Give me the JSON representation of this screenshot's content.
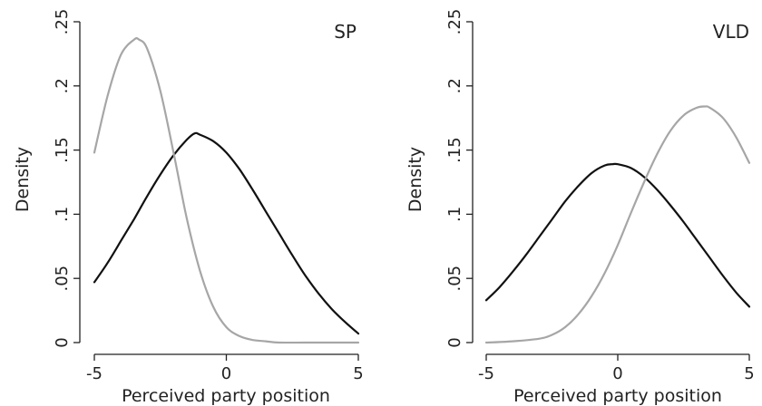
{
  "chart_data": [
    {
      "type": "line",
      "title": "SP",
      "xlabel": "Perceived party position",
      "ylabel": "Density",
      "xlim": [
        -5,
        5
      ],
      "ylim": [
        0,
        0.25
      ],
      "x_ticks": [
        -5,
        0,
        5
      ],
      "x_tick_labels": [
        "-5",
        "0",
        "5"
      ],
      "y_ticks": [
        0,
        0.05,
        0.1,
        0.15,
        0.2,
        0.25
      ],
      "y_tick_labels": [
        "0",
        ".05",
        ".1",
        ".15",
        ".2",
        ".25"
      ],
      "grid": false,
      "legend": "none",
      "series": [
        {
          "color": "#111111",
          "x": [
            -5,
            -4.5,
            -4,
            -3.5,
            -3,
            -2.5,
            -2,
            -1.5,
            -1.2,
            -1,
            -0.5,
            0,
            0.5,
            1,
            1.5,
            2,
            2.5,
            3,
            3.5,
            4,
            4.5,
            5
          ],
          "y": [
            0.047,
            0.062,
            0.079,
            0.096,
            0.114,
            0.131,
            0.146,
            0.158,
            0.163,
            0.162,
            0.157,
            0.148,
            0.135,
            0.119,
            0.102,
            0.085,
            0.068,
            0.052,
            0.038,
            0.026,
            0.016,
            0.007
          ]
        },
        {
          "color": "#a6a6a6",
          "x": [
            -5,
            -4.5,
            -4,
            -3.5,
            -3.3,
            -3,
            -2.5,
            -2,
            -1.5,
            -1,
            -0.5,
            0,
            0.5,
            1,
            1.5,
            2,
            3,
            4,
            5
          ],
          "y": [
            0.148,
            0.192,
            0.224,
            0.236,
            0.236,
            0.229,
            0.196,
            0.148,
            0.097,
            0.056,
            0.028,
            0.012,
            0.005,
            0.002,
            0.001,
            0.0,
            0.0,
            0.0,
            0.0
          ]
        }
      ]
    },
    {
      "type": "line",
      "title": "VLD",
      "xlabel": "Perceived party position",
      "ylabel": "Density",
      "xlim": [
        -5,
        5
      ],
      "ylim": [
        0,
        0.25
      ],
      "x_ticks": [
        -5,
        0,
        5
      ],
      "x_tick_labels": [
        "-5",
        "0",
        "5"
      ],
      "y_ticks": [
        0,
        0.05,
        0.1,
        0.15,
        0.2,
        0.25
      ],
      "y_tick_labels": [
        "0",
        ".05",
        ".1",
        ".15",
        ".2",
        ".25"
      ],
      "grid": false,
      "legend": "none",
      "series": [
        {
          "color": "#111111",
          "x": [
            -5,
            -4.5,
            -4,
            -3.5,
            -3,
            -2.5,
            -2,
            -1.5,
            -1,
            -0.5,
            -0.2,
            0,
            0.5,
            1,
            1.5,
            2,
            2.5,
            3,
            3.5,
            4,
            4.5,
            5
          ],
          "y": [
            0.033,
            0.043,
            0.055,
            0.068,
            0.082,
            0.096,
            0.11,
            0.122,
            0.132,
            0.138,
            0.139,
            0.139,
            0.136,
            0.129,
            0.119,
            0.107,
            0.094,
            0.08,
            0.066,
            0.052,
            0.039,
            0.028
          ]
        },
        {
          "color": "#a6a6a6",
          "x": [
            -5,
            -4,
            -3,
            -2.5,
            -2,
            -1.5,
            -1,
            -0.5,
            0,
            0.5,
            1,
            1.5,
            2,
            2.5,
            3,
            3.3,
            3.5,
            4,
            4.5,
            5
          ],
          "y": [
            0.0,
            0.001,
            0.003,
            0.006,
            0.012,
            0.022,
            0.036,
            0.054,
            0.076,
            0.101,
            0.125,
            0.147,
            0.165,
            0.177,
            0.183,
            0.184,
            0.183,
            0.175,
            0.16,
            0.14
          ]
        }
      ]
    }
  ]
}
